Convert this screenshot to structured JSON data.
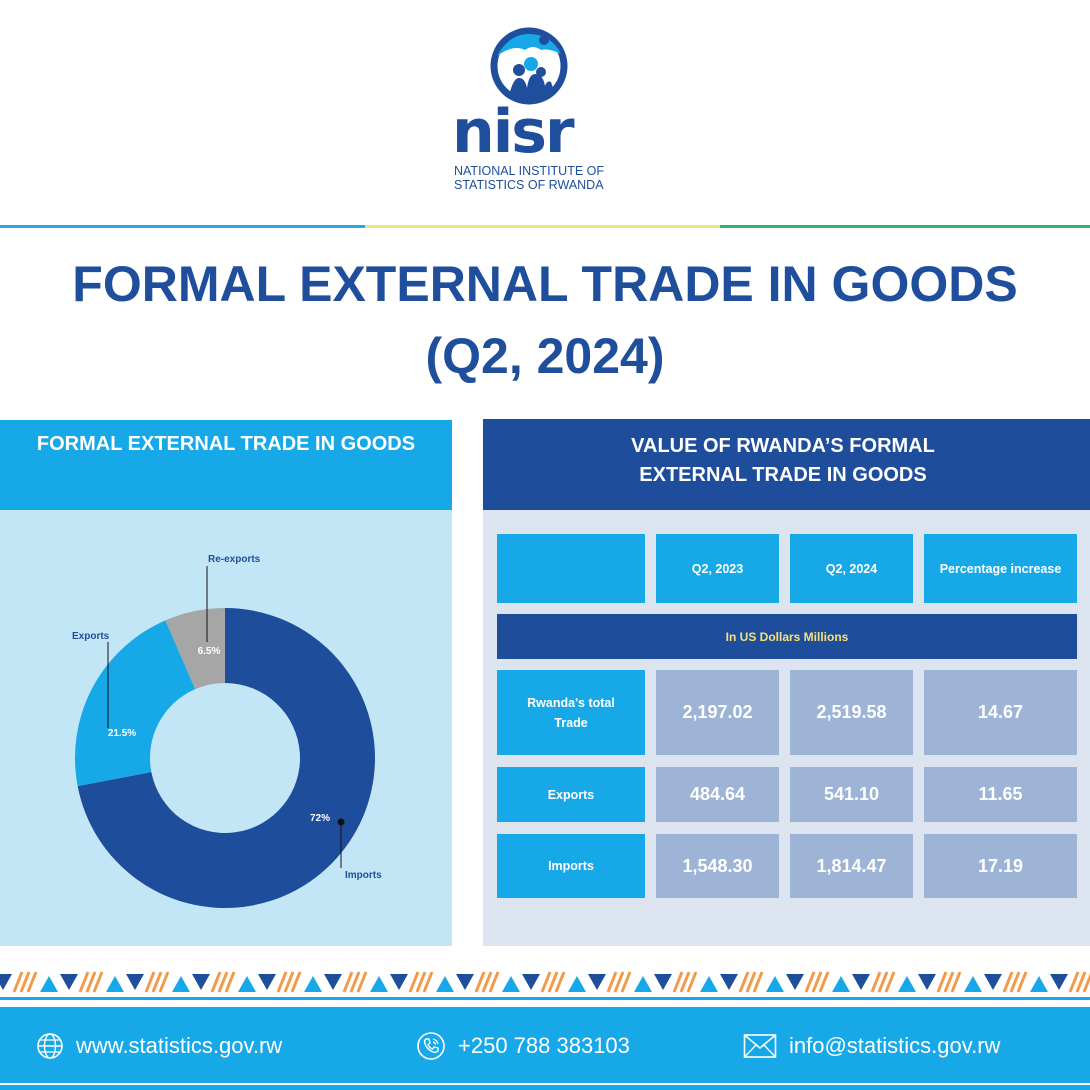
{
  "header": {
    "logo_word": "nisr",
    "logo_line1": "NATIONAL INSTITUTE OF",
    "logo_line2": "STATISTICS OF RWANDA"
  },
  "title": {
    "line1": "FORMAL EXTERNAL TRADE IN GOODS",
    "line2": "(Q2, 2024)"
  },
  "left_panel": {
    "heading": "FORMAL EXTERNAL TRADE IN GOODS"
  },
  "right_panel": {
    "heading_line1": "VALUE OF RWANDA’S FORMAL",
    "heading_line2": "EXTERNAL TRADE IN GOODS",
    "columns": [
      "",
      "Q2, 2023",
      "Q2, 2024",
      "Percentage increase"
    ],
    "unit_note": "In US Dollars Millions",
    "rows": [
      {
        "label_line1": "Rwanda's total",
        "label_line2": "Trade",
        "values": [
          "2,197.02",
          "2,519.58",
          "14.67"
        ]
      },
      {
        "label_line1": "Exports",
        "label_line2": "",
        "values": [
          "484.64",
          "541.10",
          "11.65"
        ]
      },
      {
        "label_line1": "Imports",
        "label_line2": "",
        "values": [
          "1,548.30",
          "1,814.47",
          "17.19"
        ]
      }
    ]
  },
  "chart_data": {
    "type": "pie",
    "donut": true,
    "title": "FORMAL EXTERNAL TRADE IN GOODS",
    "slices": [
      {
        "name": "Imports",
        "value": 72,
        "label": "72%",
        "color": "#1e4d9c"
      },
      {
        "name": "Exports",
        "value": 21.5,
        "label": "21.5%",
        "color": "#17a8e8"
      },
      {
        "name": "Re-exports",
        "value": 6.5,
        "label": "6.5%",
        "color": "#a6a6a6"
      }
    ],
    "start": "12 o'clock",
    "direction": "clockwise"
  },
  "footer": {
    "website": "www.statistics.gov.rw",
    "phone": "+250 788 383103",
    "email": "info@statistics.gov.rw"
  },
  "colors": {
    "brand_blue": "#1f4e9c",
    "light_blue": "#17a8e8",
    "panel_light": "#c3e6f7",
    "table_value_bg": "#9db4d6",
    "accent_yellow": "#f6e07a",
    "accent_green": "#2bb673",
    "accent_orange": "#f39a4a"
  }
}
